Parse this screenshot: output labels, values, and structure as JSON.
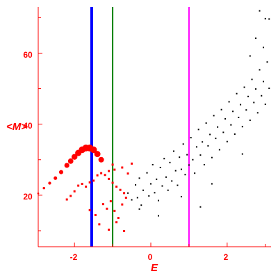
{
  "chart_data": {
    "type": "scatter",
    "title": "",
    "xlabel": "E",
    "ylabel": "<M>",
    "xlim": [
      -2.95,
      3.15
    ],
    "ylim": [
      5.5,
      73
    ],
    "x_ticks": [
      -2,
      0,
      2
    ],
    "y_ticks": [
      20,
      40,
      60
    ],
    "x_tick_labels": [
      "-2",
      "0",
      "2"
    ],
    "y_tick_labels": [
      "20",
      "40",
      "60"
    ],
    "grid": false,
    "legend": "none",
    "colors": {
      "axes": "#ff0000",
      "black_points": "#000000",
      "red_points": "#ff0000",
      "line_blue": "#0000ff",
      "line_green": "#008000",
      "line_magenta": "#ff00ff"
    },
    "vertical_lines": [
      {
        "x": -1.55,
        "color": "#0000ff"
      },
      {
        "x": -1.0,
        "color": "#008000"
      },
      {
        "x": 1.0,
        "color": "#ff00ff"
      }
    ],
    "red_curve": {
      "x": [
        -2.95,
        -2.8,
        -2.65,
        -2.5,
        -2.35,
        -2.2,
        -2.1,
        -2.0,
        -1.9,
        -1.8,
        -1.7,
        -1.6,
        -1.5,
        -1.4,
        -1.3
      ],
      "y": [
        20.5,
        22.0,
        23.4,
        24.8,
        26.5,
        28.4,
        29.6,
        30.8,
        31.9,
        32.8,
        33.3,
        33.3,
        32.8,
        31.6,
        30.0
      ]
    },
    "series": [
      {
        "type": "scatter",
        "color": "#000000",
        "points": [
          [
            -0.6,
            20.6
          ],
          [
            -0.5,
            18.7
          ],
          [
            -0.4,
            22.9
          ],
          [
            -0.35,
            19.3
          ],
          [
            -0.3,
            24.8
          ],
          [
            -0.25,
            17.2
          ],
          [
            -0.2,
            21.4
          ],
          [
            -0.1,
            26.3
          ],
          [
            -0.05,
            19.8
          ],
          [
            0.0,
            23.2
          ],
          [
            0.05,
            28.6
          ],
          [
            0.1,
            20.7
          ],
          [
            0.15,
            24.5
          ],
          [
            0.2,
            18.5
          ],
          [
            0.25,
            27.8
          ],
          [
            0.3,
            22.6
          ],
          [
            0.35,
            30.3
          ],
          [
            0.4,
            25.1
          ],
          [
            0.45,
            21.4
          ],
          [
            0.5,
            29.2
          ],
          [
            0.55,
            24.0
          ],
          [
            0.6,
            32.4
          ],
          [
            0.65,
            26.9
          ],
          [
            0.7,
            22.8
          ],
          [
            0.75,
            30.7
          ],
          [
            0.8,
            27.3
          ],
          [
            0.85,
            34.4
          ],
          [
            0.9,
            25.8
          ],
          [
            0.95,
            31.4
          ],
          [
            1.0,
            28.5
          ],
          [
            1.05,
            36.2
          ],
          [
            1.1,
            30.0
          ],
          [
            1.15,
            26.2
          ],
          [
            1.2,
            33.6
          ],
          [
            1.25,
            38.5
          ],
          [
            1.3,
            31.3
          ],
          [
            1.35,
            35.0
          ],
          [
            1.4,
            28.6
          ],
          [
            1.45,
            40.3
          ],
          [
            1.5,
            33.9
          ],
          [
            1.55,
            37.1
          ],
          [
            1.6,
            30.6
          ],
          [
            1.65,
            42.4
          ],
          [
            1.7,
            36.0
          ],
          [
            1.75,
            39.2
          ],
          [
            1.8,
            32.8
          ],
          [
            1.85,
            44.1
          ],
          [
            1.9,
            37.7
          ],
          [
            1.95,
            41.5
          ],
          [
            2.0,
            35.1
          ],
          [
            2.05,
            46.3
          ],
          [
            2.1,
            39.8
          ],
          [
            2.15,
            43.6
          ],
          [
            2.2,
            37.2
          ],
          [
            2.25,
            48.6
          ],
          [
            2.3,
            41.9
          ],
          [
            2.35,
            45.5
          ],
          [
            2.4,
            39.3
          ],
          [
            2.45,
            50.4
          ],
          [
            2.5,
            44.0
          ],
          [
            2.55,
            47.8
          ],
          [
            2.6,
            41.1
          ],
          [
            2.65,
            52.6
          ],
          [
            2.7,
            46.1
          ],
          [
            2.75,
            49.9
          ],
          [
            2.8,
            43.2
          ],
          [
            2.85,
            55.3
          ],
          [
            2.9,
            48.0
          ],
          [
            2.95,
            52.0
          ],
          [
            3.0,
            45.6
          ],
          [
            3.05,
            57.5
          ],
          [
            3.1,
            50.1
          ],
          [
            2.85,
            71.9
          ],
          [
            3.0,
            69.7
          ],
          [
            3.1,
            69.6
          ],
          [
            2.75,
            64.2
          ],
          [
            2.95,
            61.6
          ],
          [
            2.6,
            59.2
          ],
          [
            1.3,
            16.7
          ],
          [
            0.2,
            14.2
          ],
          [
            -0.3,
            16.1
          ],
          [
            0.8,
            19.6
          ],
          [
            1.6,
            23.2
          ],
          [
            2.4,
            31.6
          ]
        ]
      },
      {
        "type": "scatter",
        "color": "#ff0000",
        "points": [
          [
            -2.2,
            18.8
          ],
          [
            -2.1,
            19.8
          ],
          [
            -2.0,
            21.1
          ],
          [
            -1.9,
            22.7
          ],
          [
            -1.8,
            23.2
          ],
          [
            -1.7,
            22.4
          ],
          [
            -1.6,
            23.6
          ],
          [
            -1.5,
            24.1
          ],
          [
            -1.4,
            25.6
          ],
          [
            -1.3,
            26.2
          ],
          [
            -1.2,
            25.7
          ],
          [
            -1.1,
            24.6
          ],
          [
            -1.0,
            23.5
          ],
          [
            -0.9,
            22.4
          ],
          [
            -0.8,
            21.5
          ],
          [
            -0.7,
            20.6
          ],
          [
            -1.25,
            17.5
          ],
          [
            -1.15,
            16.2
          ],
          [
            -1.05,
            18.3
          ],
          [
            -0.95,
            15.6
          ],
          [
            -0.85,
            13.6
          ],
          [
            -0.75,
            17.4
          ],
          [
            -0.65,
            19.3
          ],
          [
            -1.35,
            11.8
          ],
          [
            -1.45,
            14.4
          ],
          [
            -1.1,
            10.3
          ],
          [
            -1.6,
            15.8
          ],
          [
            -0.9,
            12.4
          ],
          [
            -0.7,
            9.9
          ],
          [
            -1.0,
            28.6
          ],
          [
            -0.95,
            27.2
          ],
          [
            -1.1,
            26.8
          ],
          [
            -0.75,
            27.8
          ],
          [
            -0.6,
            26.1
          ],
          [
            -0.5,
            28.9
          ]
        ]
      }
    ]
  }
}
